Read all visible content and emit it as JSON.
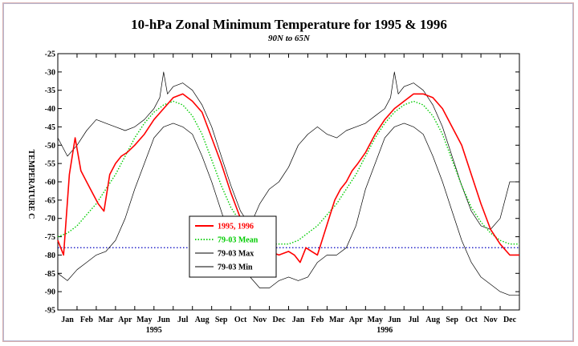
{
  "chart_data": {
    "type": "line",
    "title": "10-hPa Zonal Minimum Temperature for 1995 & 1996",
    "subtitle": "90N to 65N",
    "ylabel": "TEMPERATURE C",
    "xlabel": "",
    "ylim": [
      -95,
      -25
    ],
    "yticks": [
      -25,
      -30,
      -35,
      -40,
      -45,
      -50,
      -55,
      -60,
      -65,
      -70,
      -75,
      -80,
      -85,
      -90,
      -95
    ],
    "month_labels": [
      "Jan",
      "Feb",
      "Mar",
      "Apr",
      "May",
      "Jun",
      "Jul",
      "Aug",
      "Sep",
      "Oct",
      "Nov",
      "Dec",
      "Jan",
      "Feb",
      "Mar",
      "Apr",
      "May",
      "Jun",
      "Jul",
      "Aug",
      "Sep",
      "Oct",
      "Nov",
      "Dec"
    ],
    "year_labels": [
      "1995",
      "1996"
    ],
    "reference_line": {
      "value": -78,
      "color": "#0000c0",
      "style": "dotted"
    },
    "legend_position": "center-left",
    "x_units": "month (0 = Jan 1995 start, 24 = end of Dec 1996)",
    "series": [
      {
        "name": "1995, 1996",
        "color": "#ff0000",
        "x": [
          0.0,
          0.3,
          0.6,
          0.9,
          1.2,
          1.5,
          1.8,
          2.1,
          2.4,
          2.7,
          3.0,
          3.3,
          3.6,
          4.0,
          4.5,
          5.0,
          5.5,
          6.0,
          6.5,
          7.0,
          7.5,
          8.0,
          8.5,
          9.0,
          9.5,
          10.0,
          10.5,
          11.0,
          11.5,
          12.0,
          12.3,
          12.6,
          12.9,
          13.2,
          13.5,
          13.8,
          14.1,
          14.4,
          14.7,
          15.0,
          15.3,
          15.6,
          16.0,
          16.5,
          17.0,
          17.5,
          18.0,
          18.5,
          19.0,
          19.5,
          20.0,
          20.5,
          21.0,
          21.5,
          22.0,
          22.5,
          23.0,
          23.5,
          24.0
        ],
        "y": [
          -76,
          -80,
          -58,
          -48,
          -57,
          -60,
          -63,
          -66,
          -68,
          -58,
          -55,
          -53,
          -52,
          -50,
          -47,
          -43,
          -40,
          -37,
          -36,
          -38,
          -41,
          -48,
          -55,
          -63,
          -70,
          -74,
          -77,
          -79,
          -80,
          -79,
          -80,
          -82,
          -78,
          -79,
          -80,
          -75,
          -70,
          -65,
          -62,
          -60,
          -57,
          -55,
          -52,
          -47,
          -43,
          -40,
          -38,
          -36,
          -36,
          -37,
          -40,
          -45,
          -50,
          -58,
          -66,
          -73,
          -77,
          -80,
          -80
        ]
      },
      {
        "name": "79-03 Mean",
        "color": "#00cc00",
        "x": [
          0.0,
          0.5,
          1.0,
          1.5,
          2.0,
          2.5,
          3.0,
          3.5,
          4.0,
          4.5,
          5.0,
          5.5,
          6.0,
          6.5,
          7.0,
          7.5,
          8.0,
          8.5,
          9.0,
          9.5,
          10.0,
          10.5,
          11.0,
          11.5,
          12.0,
          12.5,
          13.0,
          13.5,
          14.0,
          14.5,
          15.0,
          15.5,
          16.0,
          16.5,
          17.0,
          17.5,
          18.0,
          18.5,
          19.0,
          19.5,
          20.0,
          20.5,
          21.0,
          21.5,
          22.0,
          22.5,
          23.0,
          23.5,
          24.0
        ],
        "y": [
          -75,
          -74,
          -72,
          -69,
          -66,
          -62,
          -58,
          -53,
          -48,
          -44,
          -41,
          -39,
          -38,
          -39,
          -42,
          -47,
          -54,
          -61,
          -67,
          -71,
          -74,
          -76,
          -77,
          -77,
          -77,
          -76,
          -74,
          -72,
          -69,
          -66,
          -62,
          -58,
          -53,
          -48,
          -44,
          -41,
          -39,
          -38,
          -39,
          -42,
          -47,
          -54,
          -61,
          -67,
          -71,
          -74,
          -76,
          -77,
          -77
        ]
      },
      {
        "name": "79-03 Max",
        "color": "#000000",
        "x": [
          0.0,
          0.5,
          1.0,
          1.5,
          2.0,
          2.5,
          3.0,
          3.5,
          4.0,
          4.5,
          5.0,
          5.3,
          5.5,
          5.7,
          6.0,
          6.5,
          7.0,
          7.5,
          8.0,
          8.5,
          9.0,
          9.5,
          10.0,
          10.5,
          11.0,
          11.5,
          12.0,
          12.5,
          13.0,
          13.5,
          14.0,
          14.5,
          15.0,
          15.5,
          16.0,
          16.5,
          17.0,
          17.3,
          17.5,
          17.7,
          18.0,
          18.5,
          19.0,
          19.5,
          20.0,
          20.5,
          21.0,
          21.5,
          22.0,
          22.5,
          23.0,
          23.5,
          24.0
        ],
        "y": [
          -48,
          -53,
          -50,
          -46,
          -43,
          -44,
          -45,
          -46,
          -45,
          -43,
          -40,
          -37,
          -30,
          -36,
          -34,
          -33,
          -35,
          -39,
          -45,
          -53,
          -61,
          -68,
          -72,
          -66,
          -62,
          -60,
          -56,
          -50,
          -47,
          -45,
          -47,
          -48,
          -46,
          -45,
          -44,
          -42,
          -40,
          -37,
          -30,
          -36,
          -34,
          -33,
          -35,
          -39,
          -45,
          -53,
          -61,
          -68,
          -72,
          -73,
          -70,
          -60,
          -60
        ]
      },
      {
        "name": "79-03 Min",
        "color": "#000000",
        "x": [
          0.0,
          0.5,
          1.0,
          1.5,
          2.0,
          2.5,
          3.0,
          3.5,
          4.0,
          4.5,
          5.0,
          5.5,
          6.0,
          6.5,
          7.0,
          7.5,
          8.0,
          8.5,
          9.0,
          9.5,
          10.0,
          10.5,
          11.0,
          11.5,
          12.0,
          12.5,
          13.0,
          13.5,
          14.0,
          14.5,
          15.0,
          15.5,
          16.0,
          16.5,
          17.0,
          17.5,
          18.0,
          18.5,
          19.0,
          19.5,
          20.0,
          20.5,
          21.0,
          21.5,
          22.0,
          22.5,
          23.0,
          23.5,
          24.0
        ],
        "y": [
          -85,
          -87,
          -84,
          -82,
          -80,
          -79,
          -76,
          -70,
          -62,
          -55,
          -48,
          -45,
          -44,
          -45,
          -47,
          -53,
          -60,
          -68,
          -76,
          -82,
          -86,
          -89,
          -89,
          -87,
          -86,
          -87,
          -86,
          -82,
          -80,
          -80,
          -78,
          -72,
          -62,
          -55,
          -48,
          -45,
          -44,
          -45,
          -47,
          -53,
          -60,
          -68,
          -76,
          -82,
          -86,
          -88,
          -90,
          -91,
          -91
        ]
      }
    ]
  }
}
